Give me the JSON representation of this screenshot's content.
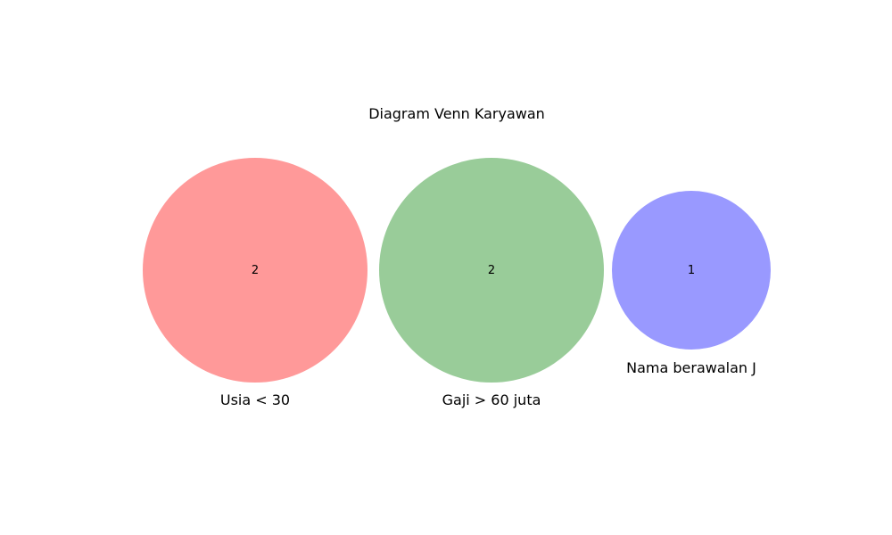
{
  "diagram": {
    "title": "Diagram Venn Karyawan",
    "sets": [
      {
        "label": "Usia < 30",
        "count": "2",
        "color": "#ff9999"
      },
      {
        "label": "Gaji > 60 juta",
        "count": "2",
        "color": "#99cc99"
      },
      {
        "label": "Nama berawalan J",
        "count": "1",
        "color": "#9999ff"
      }
    ]
  }
}
